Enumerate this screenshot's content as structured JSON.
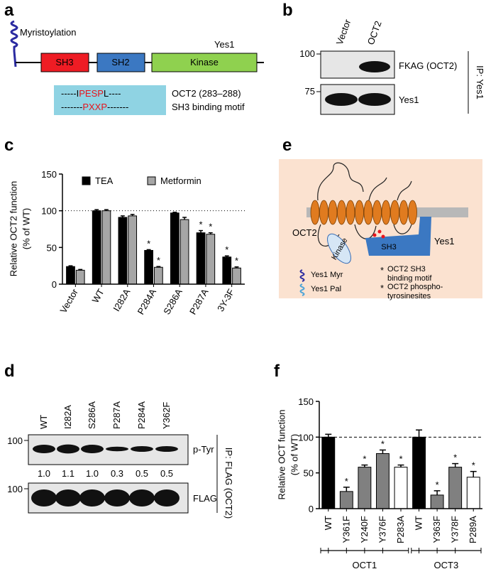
{
  "panel_a": {
    "label": "a",
    "modification": "Myristoylation",
    "protein": "Yes1",
    "domains": [
      "SH3",
      "SH2",
      "Kinase"
    ],
    "motif": [
      [
        "-----I",
        "PESP",
        "L----"
      ],
      [
        "-------",
        "PXXP",
        "-------"
      ]
    ],
    "motif_labels": [
      "OCT2 (283–288)",
      "SH3 binding motif"
    ]
  },
  "panel_b": {
    "label": "b",
    "lanes": [
      "Vector",
      "OCT2"
    ],
    "markers": [
      "100",
      "75"
    ],
    "rows": [
      "FKAG (OCT2)",
      "Yes1"
    ],
    "ip": "IP: Yes1"
  },
  "panel_d": {
    "label": "d",
    "lanes": [
      {
        "name": "WT",
        "color": "#000000"
      },
      {
        "name": "I282A",
        "color": "#000000"
      },
      {
        "name": "S286A",
        "color": "#000000"
      },
      {
        "name": "P287A",
        "color": "#e8141c"
      },
      {
        "name": "P284A",
        "color": "#e8141c"
      },
      {
        "name": "Y362F",
        "color": "#000000"
      }
    ],
    "markers": [
      "100",
      "100"
    ],
    "rows": [
      "p-Tyr",
      "FLAG"
    ],
    "quantification": [
      {
        "value": 1.0,
        "label": "1.0"
      },
      {
        "value": 1.1,
        "label": "1.1"
      },
      {
        "value": 1.0,
        "label": "1.0"
      },
      {
        "value": 0.3,
        "label": "0.3"
      },
      {
        "value": 0.5,
        "label": "0.5"
      },
      {
        "value": 0.5,
        "label": "0.5"
      }
    ],
    "ip": "IP: FLAG (OCT2)"
  },
  "panel_e": {
    "label": "e",
    "oct2": "OCT2",
    "yes1": "Yes1",
    "kinase": "Kinase",
    "sh3": "SH3",
    "myr": "Yes1 Myr",
    "pal": "Yes1 Pal",
    "star": "*",
    "motif": [
      "OCT2 SH3",
      "binding motif"
    ],
    "phospho": [
      "OCT2 phospho-",
      "tyrosinesites"
    ]
  },
  "chart_data": [
    {
      "type": "bar",
      "panel": "c",
      "ylabel": [
        "Relative OCT2 function",
        "(% of WT)"
      ],
      "categories": [
        "Vector",
        "WT",
        "I282A",
        "P284A",
        "S286A",
        "P287A",
        "3Y-3F"
      ],
      "series": [
        {
          "name": "TEA",
          "color": "#000000",
          "values": [
            24,
            100,
            91,
            46,
            97,
            70,
            37
          ],
          "errors": [
            1,
            1.5,
            2,
            1,
            1,
            3,
            1.5
          ],
          "stars": [
            null,
            null,
            null,
            "*",
            null,
            "*",
            "*"
          ]
        },
        {
          "name": "Metformin",
          "color": "#a6a6a6",
          "values": [
            19,
            100,
            93,
            23,
            88,
            68,
            22
          ],
          "errors": [
            1,
            1.5,
            2,
            1,
            3,
            2,
            1.5
          ],
          "stars": [
            null,
            null,
            null,
            "*",
            null,
            "*",
            "*"
          ]
        }
      ],
      "ylim": [
        0,
        150
      ],
      "yticks": [
        0,
        50,
        100,
        150
      ],
      "reference_line": 100,
      "legend": "top"
    },
    {
      "type": "bar",
      "panel": "f",
      "ylabel": [
        "Relative OCT function",
        "(% of WT)"
      ],
      "categories": [
        "WT",
        "Y361F",
        "Y240F",
        "Y376F",
        "P283A",
        "WT",
        "Y363F",
        "Y378F",
        "P289A"
      ],
      "series": [
        {
          "colors": [
            "#000000",
            "#808080",
            "#808080",
            "#808080",
            "#ffffff",
            "#000000",
            "#808080",
            "#808080",
            "#ffffff"
          ],
          "values": [
            100,
            24,
            58,
            77,
            58,
            100,
            19,
            58,
            44
          ],
          "errors": [
            4,
            6,
            3,
            5,
            3,
            10,
            6,
            5,
            8
          ],
          "stars": [
            null,
            "*",
            "*",
            "*",
            "*",
            null,
            "*",
            "*",
            "*"
          ]
        }
      ],
      "ylim": [
        0,
        150
      ],
      "yticks": [
        0,
        50,
        100,
        150
      ],
      "reference_line": 100,
      "groups": [
        {
          "label": "OCT1",
          "count": 5
        },
        {
          "label": "OCT3",
          "count": 4
        }
      ]
    }
  ]
}
